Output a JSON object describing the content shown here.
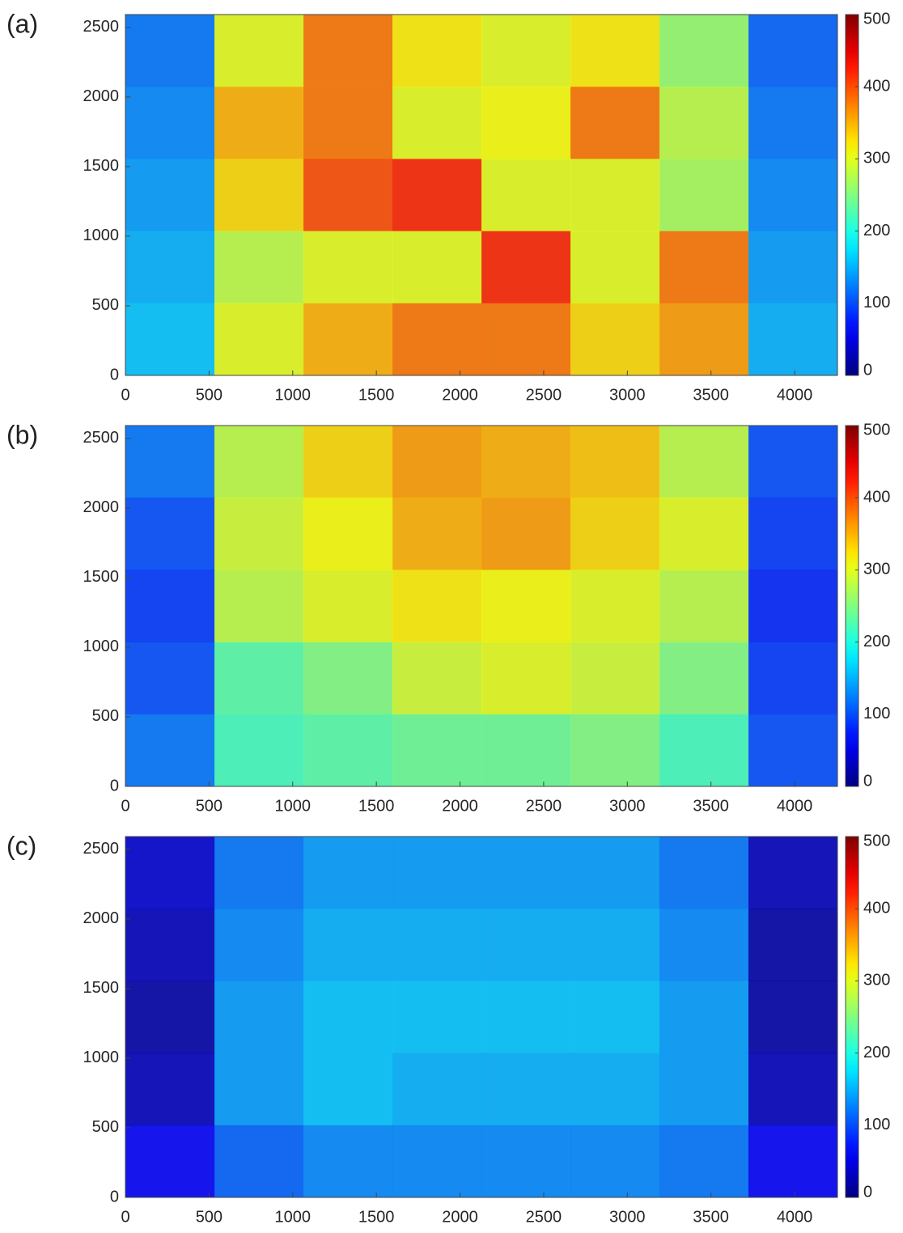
{
  "chart_data": [
    {
      "type": "heatmap",
      "panel_label": "(a)",
      "colormap": "jet",
      "xlim": [
        0,
        4256
      ],
      "ylim": [
        0,
        2592
      ],
      "xticks": [
        0,
        500,
        1000,
        1500,
        2000,
        2500,
        3000,
        3500,
        4000
      ],
      "yticks": [
        0,
        500,
        1000,
        1500,
        2000,
        2500
      ],
      "clim": [
        0,
        500
      ],
      "cticks": [
        0,
        100,
        200,
        300,
        400,
        500
      ],
      "z": [
        [
          120,
          300,
          380,
          320,
          300,
          320,
          260,
          110
        ],
        [
          130,
          350,
          380,
          300,
          310,
          380,
          280,
          120
        ],
        [
          140,
          330,
          400,
          420,
          300,
          300,
          270,
          130
        ],
        [
          150,
          280,
          300,
          300,
          420,
          300,
          380,
          140
        ],
        [
          160,
          300,
          350,
          380,
          380,
          330,
          360,
          150
        ]
      ]
    },
    {
      "type": "heatmap",
      "panel_label": "(b)",
      "colormap": "jet",
      "xlim": [
        0,
        4256
      ],
      "ylim": [
        0,
        2592
      ],
      "xticks": [
        0,
        500,
        1000,
        1500,
        2000,
        2500,
        3000,
        3500,
        4000
      ],
      "yticks": [
        0,
        500,
        1000,
        1500,
        2000,
        2500
      ],
      "clim": [
        0,
        500
      ],
      "cticks": [
        0,
        100,
        200,
        300,
        400,
        500
      ],
      "z": [
        [
          120,
          280,
          330,
          360,
          350,
          340,
          280,
          100
        ],
        [
          100,
          290,
          310,
          350,
          360,
          330,
          300,
          90
        ],
        [
          90,
          280,
          300,
          320,
          310,
          300,
          280,
          80
        ],
        [
          100,
          230,
          250,
          290,
          300,
          290,
          250,
          90
        ],
        [
          120,
          220,
          230,
          240,
          240,
          250,
          220,
          100
        ]
      ]
    },
    {
      "type": "heatmap",
      "panel_label": "(c)",
      "colormap": "jet",
      "xlim": [
        0,
        4256
      ],
      "ylim": [
        0,
        2592
      ],
      "xticks": [
        0,
        500,
        1000,
        1500,
        2000,
        2500,
        3000,
        3500,
        4000
      ],
      "yticks": [
        0,
        500,
        1000,
        1500,
        2000,
        2500
      ],
      "clim": [
        0,
        500
      ],
      "cticks": [
        0,
        100,
        200,
        300,
        400,
        500
      ],
      "z": [
        [
          40,
          120,
          140,
          140,
          140,
          140,
          120,
          30
        ],
        [
          30,
          130,
          150,
          150,
          150,
          150,
          130,
          20
        ],
        [
          20,
          140,
          160,
          160,
          160,
          160,
          140,
          20
        ],
        [
          30,
          140,
          160,
          150,
          150,
          150,
          140,
          30
        ],
        [
          60,
          110,
          130,
          130,
          130,
          130,
          120,
          60
        ]
      ]
    }
  ]
}
